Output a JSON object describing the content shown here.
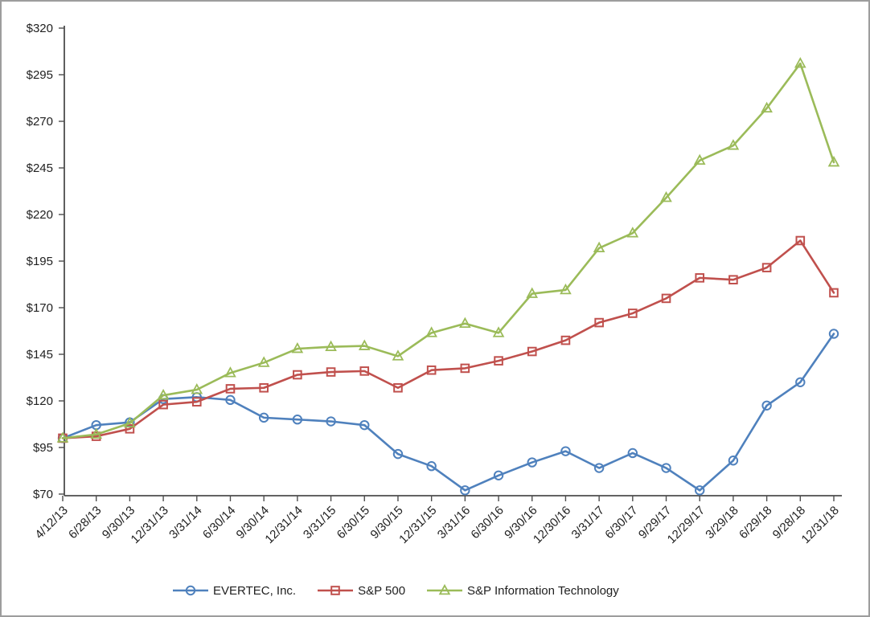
{
  "chart_data": {
    "type": "line",
    "title": "",
    "xlabel": "",
    "ylabel": "",
    "gridlines": false,
    "legend_position": "bottom",
    "x_labels": [
      "4/12/13",
      "6/28/13",
      "9/30/13",
      "12/31/13",
      "3/31/14",
      "6/30/14",
      "9/30/14",
      "12/31/14",
      "3/31/15",
      "6/30/15",
      "9/30/15",
      "12/31/15",
      "3/31/16",
      "6/30/16",
      "9/30/16",
      "12/30/16",
      "3/31/17",
      "6/30/17",
      "9/29/17",
      "12/29/17",
      "3/29/18",
      "6/29/18",
      "9/28/18",
      "12/31/18"
    ],
    "y_axis": {
      "min": 70,
      "max": 320,
      "step": 25,
      "tick_labels": [
        "$70",
        "$95",
        "$120",
        "$145",
        "$170",
        "$195",
        "$220",
        "$245",
        "$270",
        "$295",
        "$320"
      ]
    },
    "series": [
      {
        "name": "EVERTEC, Inc.",
        "marker": "circle",
        "color": "#4F81BD",
        "values": [
          100,
          107,
          108.5,
          121,
          122,
          120.5,
          111,
          110,
          109,
          107,
          91.5,
          85,
          72,
          80,
          87,
          93,
          84,
          92,
          84,
          72,
          88,
          117.5,
          130,
          156
        ]
      },
      {
        "name": "S&P 500",
        "marker": "square",
        "color": "#C0504D",
        "values": [
          100,
          101,
          105,
          118,
          119.5,
          126.5,
          127,
          134,
          135.5,
          136,
          127,
          136.5,
          137.5,
          141.5,
          146.5,
          152.5,
          162,
          167,
          175,
          186,
          185,
          191.5,
          206,
          178
        ]
      },
      {
        "name": "S&P Information Technology",
        "marker": "triangle",
        "color": "#9BBB59",
        "values": [
          100,
          102,
          108,
          123,
          126,
          135,
          140.5,
          148,
          149,
          149.5,
          144,
          156.5,
          161.5,
          156.5,
          177.5,
          179.5,
          202,
          210,
          229,
          249,
          257,
          277,
          301,
          248
        ]
      }
    ]
  }
}
